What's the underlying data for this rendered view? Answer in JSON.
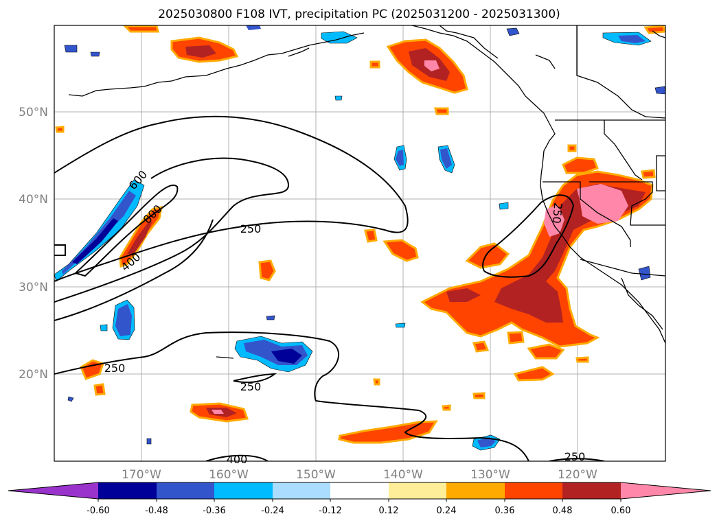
{
  "title": "2025030800 F108 IVT, precipitation PC (2025031200 - 2025031300)",
  "latitude_labels": [
    "50°N",
    "40°N",
    "30°N",
    "20°N"
  ],
  "longitude_labels": [
    "170°W",
    "160°W",
    "150°W",
    "140°W",
    "130°W",
    "120°W"
  ],
  "colorbar": {
    "colors": [
      "#9933cc",
      "#000099",
      "#3355cc",
      "#00bbff",
      "#aaddff",
      "#ffffff",
      "#ffee99",
      "#ffaa00",
      "#ff4400",
      "#b22222",
      "#ff88aa"
    ],
    "tick_labels": [
      "-0.60",
      "-0.48",
      "-0.36",
      "-0.24",
      "-0.12",
      "0.12",
      "0.24",
      "0.36",
      "0.48",
      "0.60"
    ]
  },
  "contour_labels": [
    "600",
    "800",
    "400",
    "250",
    "250",
    "250",
    "400",
    "250",
    "250"
  ]
}
